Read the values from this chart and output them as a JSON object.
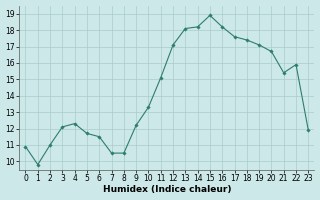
{
  "x": [
    0,
    1,
    2,
    3,
    4,
    5,
    6,
    7,
    8,
    9,
    10,
    11,
    12,
    13,
    14,
    15,
    16,
    17,
    18,
    19,
    20,
    21,
    22,
    23
  ],
  "y": [
    10.9,
    9.8,
    11.0,
    12.1,
    12.3,
    11.7,
    11.5,
    10.5,
    10.5,
    12.2,
    13.3,
    15.1,
    17.1,
    18.1,
    18.2,
    18.9,
    18.2,
    17.6,
    17.4,
    17.1,
    16.7,
    15.4,
    15.9,
    11.9
  ],
  "xlabel": "Humidex (Indice chaleur)",
  "ylim": [
    9.5,
    19.5
  ],
  "xlim": [
    -0.5,
    23.5
  ],
  "yticks": [
    10,
    11,
    12,
    13,
    14,
    15,
    16,
    17,
    18,
    19
  ],
  "xticks": [
    0,
    1,
    2,
    3,
    4,
    5,
    6,
    7,
    8,
    9,
    10,
    11,
    12,
    13,
    14,
    15,
    16,
    17,
    18,
    19,
    20,
    21,
    22,
    23
  ],
  "line_color": "#2e7d6e",
  "marker": "D",
  "marker_size": 1.8,
  "bg_color": "#cce8e8",
  "grid_color": "#aacccc",
  "xlabel_fontsize": 6.5,
  "tick_fontsize": 5.5,
  "linewidth": 0.8
}
